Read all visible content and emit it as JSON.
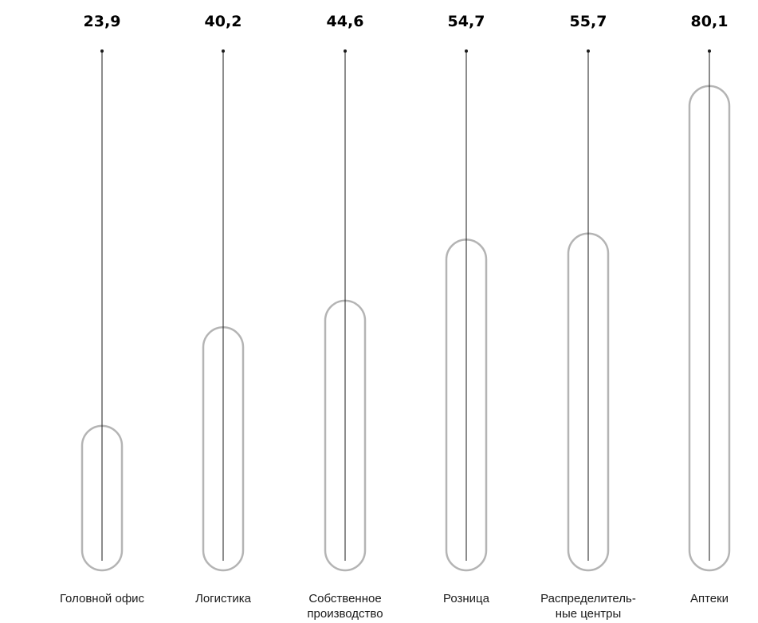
{
  "chart_data": {
    "type": "bar",
    "categories": [
      "Головной офис",
      "Логистика",
      "Собственное\nпроизводство",
      "Розница",
      "Распределитель-\nные центры",
      "Аптеки"
    ],
    "values": [
      23.9,
      40.2,
      44.6,
      54.7,
      55.7,
      80.1
    ],
    "value_labels": [
      "23,9",
      "40,2",
      "44,6",
      "54,7",
      "55,7",
      "80,1"
    ],
    "ylim": [
      0,
      92
    ],
    "grid": false,
    "legend": "none"
  },
  "colors": {
    "bar_outline": "#b4b4b4",
    "stem": "#1a1a1a",
    "text": "#000000"
  }
}
